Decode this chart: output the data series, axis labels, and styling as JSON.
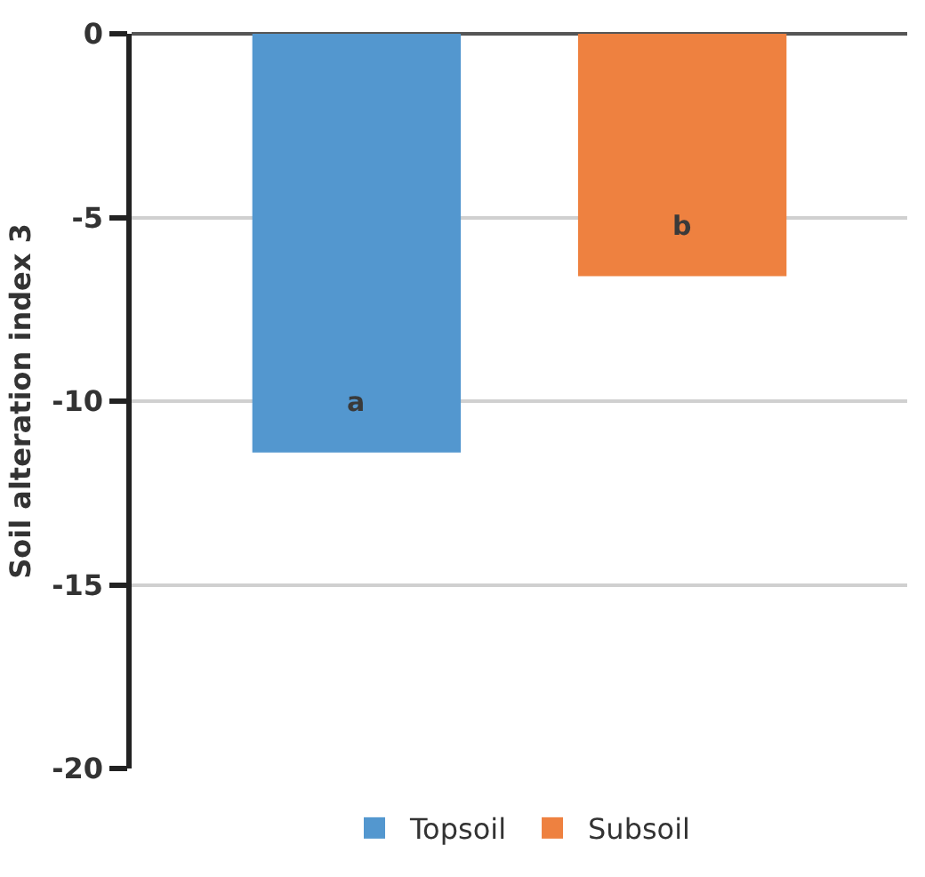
{
  "chart_data": {
    "type": "bar",
    "ylabel": "Soil alteration index 3",
    "categories": [
      null
    ],
    "series": [
      {
        "name": "Topsoil",
        "color": "#5397cf",
        "values": [
          -11.4
        ]
      },
      {
        "name": "Subsoil",
        "color": "#ee8140",
        "values": [
          -6.6
        ]
      }
    ],
    "annotations": [
      "a",
      "b"
    ],
    "ylim": [
      -20,
      0
    ],
    "yticks": [
      0,
      -5,
      -10,
      -15,
      -20
    ],
    "grid": "y",
    "legend": "bottom"
  }
}
